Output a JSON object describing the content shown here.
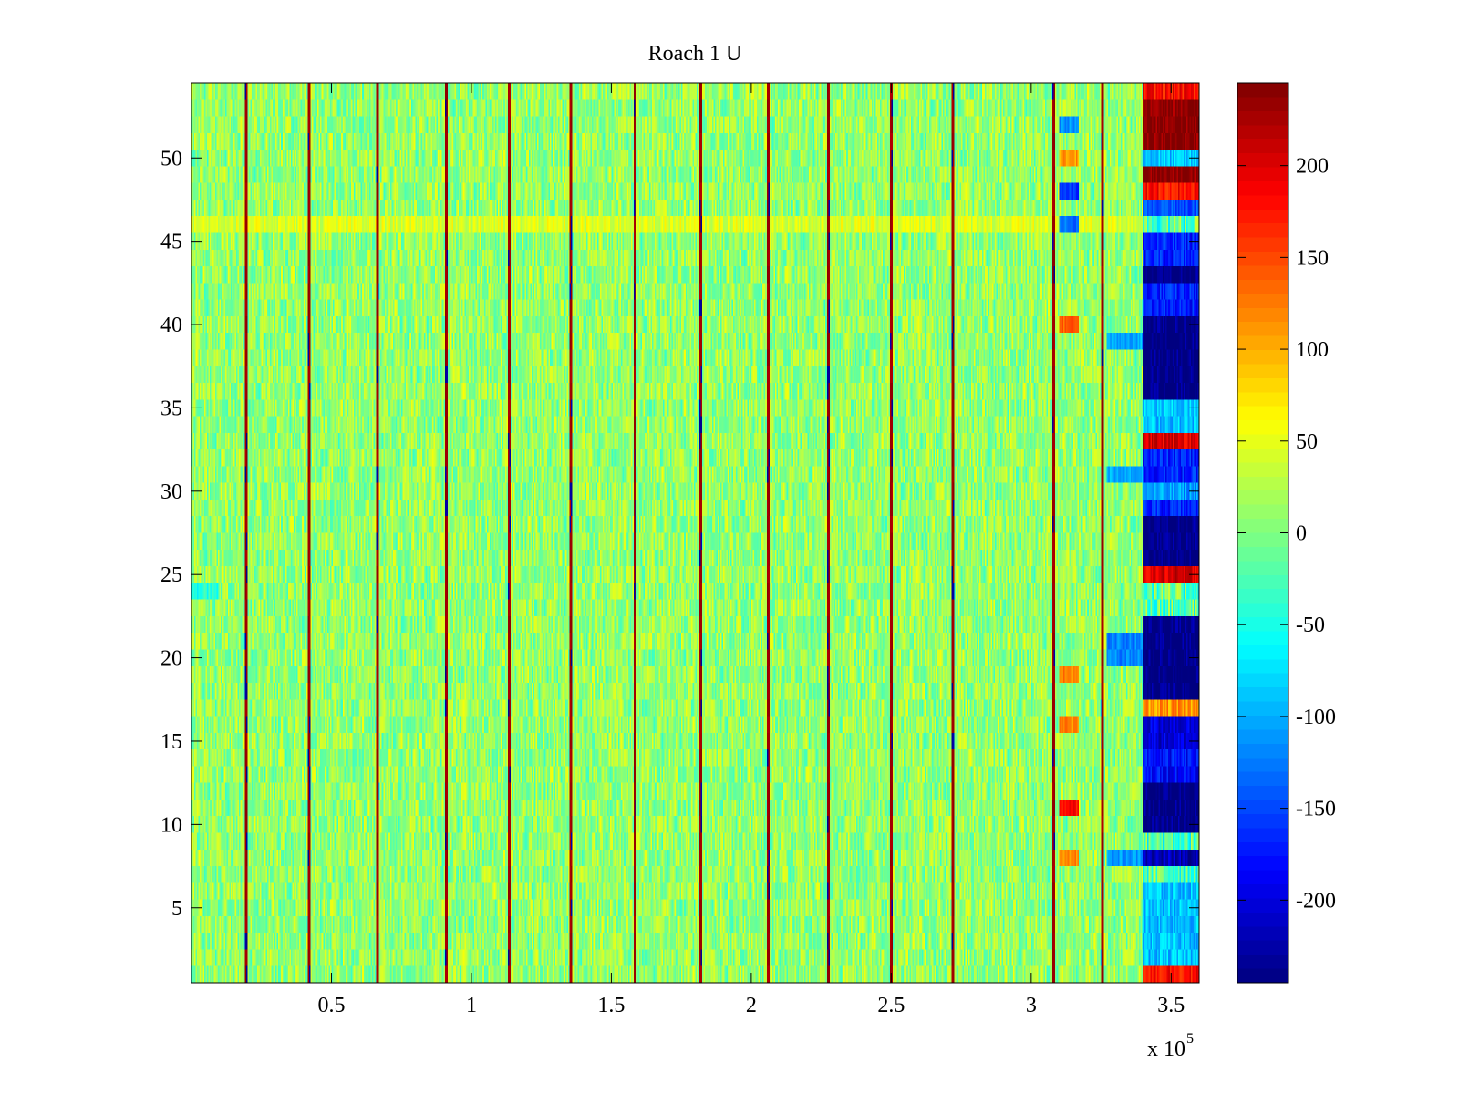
{
  "chart_data": {
    "type": "heatmap",
    "title": "Roach 1 U",
    "xlabel": "",
    "ylabel": "",
    "x_exponent_label": "x 10",
    "x_exponent_power": "5",
    "xlim": [
      0,
      3.6
    ],
    "ylim": [
      0.5,
      54.5
    ],
    "rows": 54,
    "x_ticks": [
      {
        "value": 0.5,
        "label": "0.5"
      },
      {
        "value": 1,
        "label": "1"
      },
      {
        "value": 1.5,
        "label": "1.5"
      },
      {
        "value": 2,
        "label": "2"
      },
      {
        "value": 2.5,
        "label": "2.5"
      },
      {
        "value": 3,
        "label": "3"
      },
      {
        "value": 3.5,
        "label": "3.5"
      }
    ],
    "y_ticks": [
      {
        "value": 5,
        "label": "5"
      },
      {
        "value": 10,
        "label": "10"
      },
      {
        "value": 15,
        "label": "15"
      },
      {
        "value": 20,
        "label": "20"
      },
      {
        "value": 25,
        "label": "25"
      },
      {
        "value": 30,
        "label": "30"
      },
      {
        "value": 35,
        "label": "35"
      },
      {
        "value": 40,
        "label": "40"
      },
      {
        "value": 45,
        "label": "45"
      },
      {
        "value": 50,
        "label": "50"
      }
    ],
    "colorbar": {
      "colormap": "jet",
      "clim": [
        -245,
        245
      ],
      "ticks": [
        {
          "value": -200,
          "label": "-200"
        },
        {
          "value": -150,
          "label": "-150"
        },
        {
          "value": -100,
          "label": "-100"
        },
        {
          "value": -50,
          "label": "-50"
        },
        {
          "value": 0,
          "label": "0"
        },
        {
          "value": 50,
          "label": "50"
        },
        {
          "value": 100,
          "label": "100"
        },
        {
          "value": 150,
          "label": "150"
        },
        {
          "value": 200,
          "label": "200"
        }
      ]
    },
    "background_level": 10,
    "noise_amplitude": 40,
    "vertical_spikes": [
      0.195,
      0.42,
      0.665,
      0.91,
      1.135,
      1.355,
      1.585,
      1.82,
      2.06,
      2.275,
      2.5,
      2.72,
      3.08,
      3.255
    ],
    "spike_value": 230,
    "notable_rows": [
      {
        "row": 46,
        "x_range": [
          0,
          3.4
        ],
        "value": 45
      },
      {
        "row": 24,
        "x_range": [
          0,
          0.1
        ],
        "value": -45
      }
    ],
    "end_region": {
      "x_range": [
        3.4,
        3.6
      ],
      "row_values": [
        {
          "rows": [
            1,
            1
          ],
          "value": 180
        },
        {
          "rows": [
            2,
            6
          ],
          "value": -90
        },
        {
          "rows": [
            8,
            8
          ],
          "value": -220
        },
        {
          "rows": [
            10,
            12
          ],
          "value": -245
        },
        {
          "rows": [
            13,
            14
          ],
          "value": -180
        },
        {
          "rows": [
            15,
            16
          ],
          "value": -200
        },
        {
          "rows": [
            17,
            17
          ],
          "value": 110
        },
        {
          "rows": [
            18,
            22
          ],
          "value": -245
        },
        {
          "rows": [
            25,
            25
          ],
          "value": 200
        },
        {
          "rows": [
            26,
            28
          ],
          "value": -245
        },
        {
          "rows": [
            29,
            29
          ],
          "value": -170
        },
        {
          "rows": [
            30,
            30
          ],
          "value": -110
        },
        {
          "rows": [
            31,
            32
          ],
          "value": -170
        },
        {
          "rows": [
            33,
            33
          ],
          "value": 200
        },
        {
          "rows": [
            34,
            35
          ],
          "value": -90
        },
        {
          "rows": [
            36,
            40
          ],
          "value": -245
        },
        {
          "rows": [
            41,
            42
          ],
          "value": -170
        },
        {
          "rows": [
            43,
            43
          ],
          "value": -245
        },
        {
          "rows": [
            44,
            45
          ],
          "value": -170
        },
        {
          "rows": [
            47,
            47
          ],
          "value": -140
        },
        {
          "rows": [
            48,
            48
          ],
          "value": 180
        },
        {
          "rows": [
            49,
            49
          ],
          "value": 245
        },
        {
          "rows": [
            50,
            50
          ],
          "value": -90
        },
        {
          "rows": [
            51,
            53
          ],
          "value": 245
        },
        {
          "rows": [
            54,
            54
          ],
          "value": 180
        }
      ]
    },
    "gap_region": {
      "x_range": [
        3.08,
        3.4
      ],
      "row_values": [
        {
          "rows": [
            8,
            8
          ],
          "value": 120,
          "x_range": [
            3.1,
            3.17
          ]
        },
        {
          "rows": [
            11,
            11
          ],
          "value": 180,
          "x_range": [
            3.1,
            3.17
          ]
        },
        {
          "rows": [
            16,
            16
          ],
          "value": 120,
          "x_range": [
            3.1,
            3.17
          ]
        },
        {
          "rows": [
            19,
            19
          ],
          "value": 120,
          "x_range": [
            3.1,
            3.17
          ]
        },
        {
          "rows": [
            40,
            40
          ],
          "value": 140,
          "x_range": [
            3.1,
            3.17
          ]
        },
        {
          "rows": [
            50,
            50
          ],
          "value": 110,
          "x_range": [
            3.1,
            3.17
          ]
        },
        {
          "rows": [
            48,
            48
          ],
          "value": -160,
          "x_range": [
            3.1,
            3.17
          ]
        },
        {
          "rows": [
            46,
            46
          ],
          "value": -130,
          "x_range": [
            3.1,
            3.17
          ]
        },
        {
          "rows": [
            52,
            52
          ],
          "value": -110,
          "x_range": [
            3.1,
            3.17
          ]
        },
        {
          "rows": [
            20,
            21
          ],
          "value": -120,
          "x_range": [
            3.27,
            3.4
          ]
        },
        {
          "rows": [
            8,
            8
          ],
          "value": -110,
          "x_range": [
            3.27,
            3.4
          ]
        },
        {
          "rows": [
            31,
            31
          ],
          "value": -100,
          "x_range": [
            3.27,
            3.4
          ]
        },
        {
          "rows": [
            39,
            39
          ],
          "value": -100,
          "x_range": [
            3.27,
            3.4
          ]
        }
      ]
    }
  }
}
